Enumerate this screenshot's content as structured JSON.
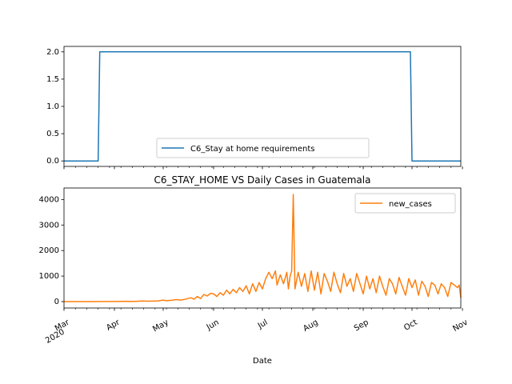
{
  "chart_data": [
    {
      "type": "line",
      "title": "",
      "xlabel": "",
      "ylabel": "",
      "ylim": [
        -0.1,
        2.1
      ],
      "yticks": [
        "0.0",
        "0.5",
        "1.0",
        "1.5",
        "2.0"
      ],
      "ytick_values": [
        0,
        0.5,
        1.0,
        1.5,
        2.0
      ],
      "grid": false,
      "legend_position": "lower center",
      "series": [
        {
          "name": "C6_Stay at home requirements",
          "color": "#1f77b4",
          "points": [
            [
              "2020-03-01",
              0
            ],
            [
              "2020-03-22",
              0
            ],
            [
              "2020-03-23",
              2
            ],
            [
              "2020-09-30",
              2
            ],
            [
              "2020-10-01",
              0
            ],
            [
              "2020-10-31",
              0
            ]
          ]
        }
      ]
    },
    {
      "type": "line",
      "title": "C6_STAY_HOME VS Daily Cases in Guatemala",
      "xlabel": "Date",
      "ylabel": "",
      "ylim": [
        -250,
        4450
      ],
      "yticks": [
        "0",
        "1000",
        "2000",
        "3000",
        "4000"
      ],
      "ytick_values": [
        0,
        1000,
        2000,
        3000,
        4000
      ],
      "x_range": [
        "2020-03-01",
        "2020-10-31"
      ],
      "xticks": [
        {
          "date": "2020-03-01",
          "label": "Mar",
          "sublabel": "2020"
        },
        {
          "date": "2020-04-01",
          "label": "Apr"
        },
        {
          "date": "2020-05-01",
          "label": "May"
        },
        {
          "date": "2020-06-01",
          "label": "Jun"
        },
        {
          "date": "2020-07-01",
          "label": "Jul"
        },
        {
          "date": "2020-08-01",
          "label": "Aug"
        },
        {
          "date": "2020-09-01",
          "label": "Sep"
        },
        {
          "date": "2020-10-01",
          "label": "Oct"
        },
        {
          "date": "2020-11-01",
          "label": "Nov"
        }
      ],
      "grid": false,
      "legend_position": "upper right",
      "series": [
        {
          "name": "new_cases",
          "color": "#ff7f0e",
          "points": [
            [
              "2020-03-01",
              0
            ],
            [
              "2020-03-15",
              1
            ],
            [
              "2020-03-25",
              3
            ],
            [
              "2020-04-01",
              5
            ],
            [
              "2020-04-08",
              12
            ],
            [
              "2020-04-14",
              6
            ],
            [
              "2020-04-18",
              25
            ],
            [
              "2020-04-22",
              15
            ],
            [
              "2020-04-28",
              30
            ],
            [
              "2020-05-01",
              60
            ],
            [
              "2020-05-03",
              35
            ],
            [
              "2020-05-06",
              50
            ],
            [
              "2020-05-09",
              80
            ],
            [
              "2020-05-12",
              60
            ],
            [
              "2020-05-15",
              100
            ],
            [
              "2020-05-18",
              150
            ],
            [
              "2020-05-20",
              90
            ],
            [
              "2020-05-22",
              200
            ],
            [
              "2020-05-24",
              120
            ],
            [
              "2020-05-26",
              280
            ],
            [
              "2020-05-28",
              220
            ],
            [
              "2020-05-30",
              320
            ],
            [
              "2020-06-01",
              300
            ],
            [
              "2020-06-03",
              200
            ],
            [
              "2020-06-05",
              350
            ],
            [
              "2020-06-07",
              250
            ],
            [
              "2020-06-09",
              450
            ],
            [
              "2020-06-11",
              300
            ],
            [
              "2020-06-13",
              480
            ],
            [
              "2020-06-15",
              350
            ],
            [
              "2020-06-17",
              550
            ],
            [
              "2020-06-19",
              400
            ],
            [
              "2020-06-21",
              620
            ],
            [
              "2020-06-23",
              300
            ],
            [
              "2020-06-25",
              700
            ],
            [
              "2020-06-27",
              400
            ],
            [
              "2020-06-29",
              750
            ],
            [
              "2020-07-01",
              500
            ],
            [
              "2020-07-03",
              900
            ],
            [
              "2020-07-05",
              1150
            ],
            [
              "2020-07-07",
              900
            ],
            [
              "2020-07-09",
              1200
            ],
            [
              "2020-07-10",
              650
            ],
            [
              "2020-07-12",
              1050
            ],
            [
              "2020-07-14",
              700
            ],
            [
              "2020-07-16",
              1150
            ],
            [
              "2020-07-17",
              500
            ],
            [
              "2020-07-18",
              1000
            ],
            [
              "2020-07-19",
              1200
            ],
            [
              "2020-07-20",
              4200
            ],
            [
              "2020-07-21",
              500
            ],
            [
              "2020-07-23",
              1150
            ],
            [
              "2020-07-25",
              600
            ],
            [
              "2020-07-27",
              1100
            ],
            [
              "2020-07-29",
              400
            ],
            [
              "2020-07-31",
              1200
            ],
            [
              "2020-08-02",
              450
            ],
            [
              "2020-08-04",
              1150
            ],
            [
              "2020-08-06",
              300
            ],
            [
              "2020-08-08",
              1100
            ],
            [
              "2020-08-10",
              800
            ],
            [
              "2020-08-12",
              400
            ],
            [
              "2020-08-14",
              1150
            ],
            [
              "2020-08-16",
              700
            ],
            [
              "2020-08-18",
              350
            ],
            [
              "2020-08-20",
              1100
            ],
            [
              "2020-08-22",
              600
            ],
            [
              "2020-08-24",
              900
            ],
            [
              "2020-08-26",
              400
            ],
            [
              "2020-08-28",
              1100
            ],
            [
              "2020-08-30",
              700
            ],
            [
              "2020-09-01",
              300
            ],
            [
              "2020-09-03",
              1000
            ],
            [
              "2020-09-05",
              500
            ],
            [
              "2020-09-07",
              900
            ],
            [
              "2020-09-09",
              350
            ],
            [
              "2020-09-11",
              1000
            ],
            [
              "2020-09-13",
              600
            ],
            [
              "2020-09-15",
              250
            ],
            [
              "2020-09-17",
              900
            ],
            [
              "2020-09-19",
              700
            ],
            [
              "2020-09-21",
              300
            ],
            [
              "2020-09-23",
              950
            ],
            [
              "2020-09-25",
              600
            ],
            [
              "2020-09-27",
              250
            ],
            [
              "2020-09-29",
              900
            ],
            [
              "2020-10-01",
              550
            ],
            [
              "2020-10-03",
              850
            ],
            [
              "2020-10-05",
              250
            ],
            [
              "2020-10-07",
              800
            ],
            [
              "2020-10-09",
              600
            ],
            [
              "2020-10-11",
              200
            ],
            [
              "2020-10-13",
              750
            ],
            [
              "2020-10-15",
              650
            ],
            [
              "2020-10-17",
              300
            ],
            [
              "2020-10-19",
              700
            ],
            [
              "2020-10-21",
              550
            ],
            [
              "2020-10-23",
              200
            ],
            [
              "2020-10-25",
              750
            ],
            [
              "2020-10-27",
              650
            ],
            [
              "2020-10-29",
              550
            ],
            [
              "2020-10-30",
              650
            ],
            [
              "2020-10-31",
              150
            ]
          ]
        }
      ]
    }
  ]
}
